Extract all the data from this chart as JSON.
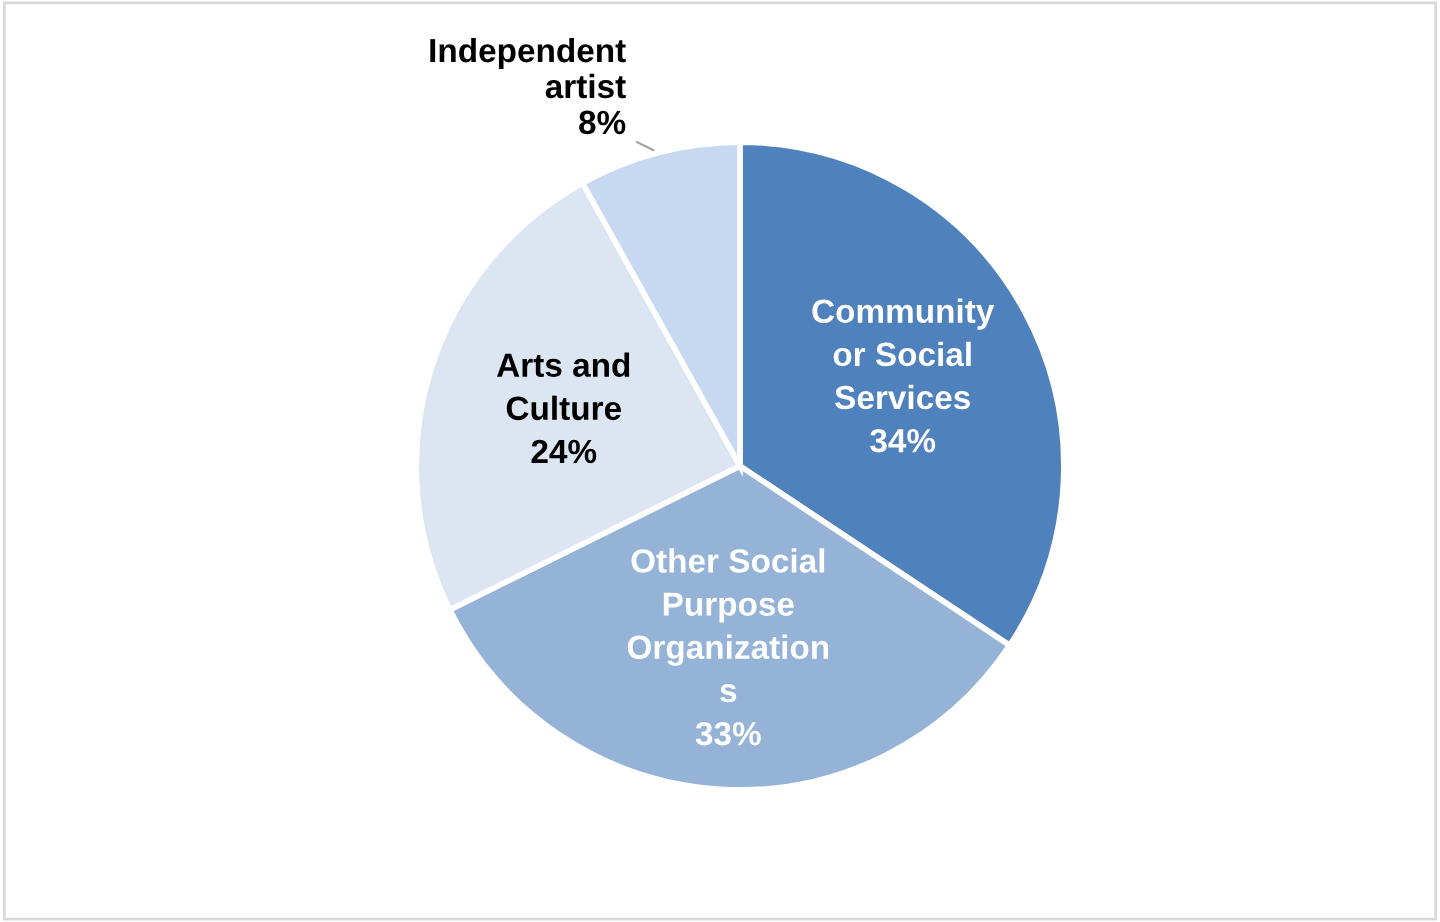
{
  "chart_data": {
    "type": "pie",
    "categories": [
      "Community\nor Social\nServices",
      "Other Social\nPurpose\nOrganization\ns",
      "Arts and\nCulture",
      "Independent\nartist"
    ],
    "values": [
      34,
      33,
      24,
      8
    ],
    "value_labels": [
      "34%",
      "33%",
      "24%",
      "8%"
    ],
    "colors": [
      "#4f81bd",
      "#95b3d7",
      "#dce6f2",
      "#c6d9f0"
    ],
    "legend": false
  }
}
